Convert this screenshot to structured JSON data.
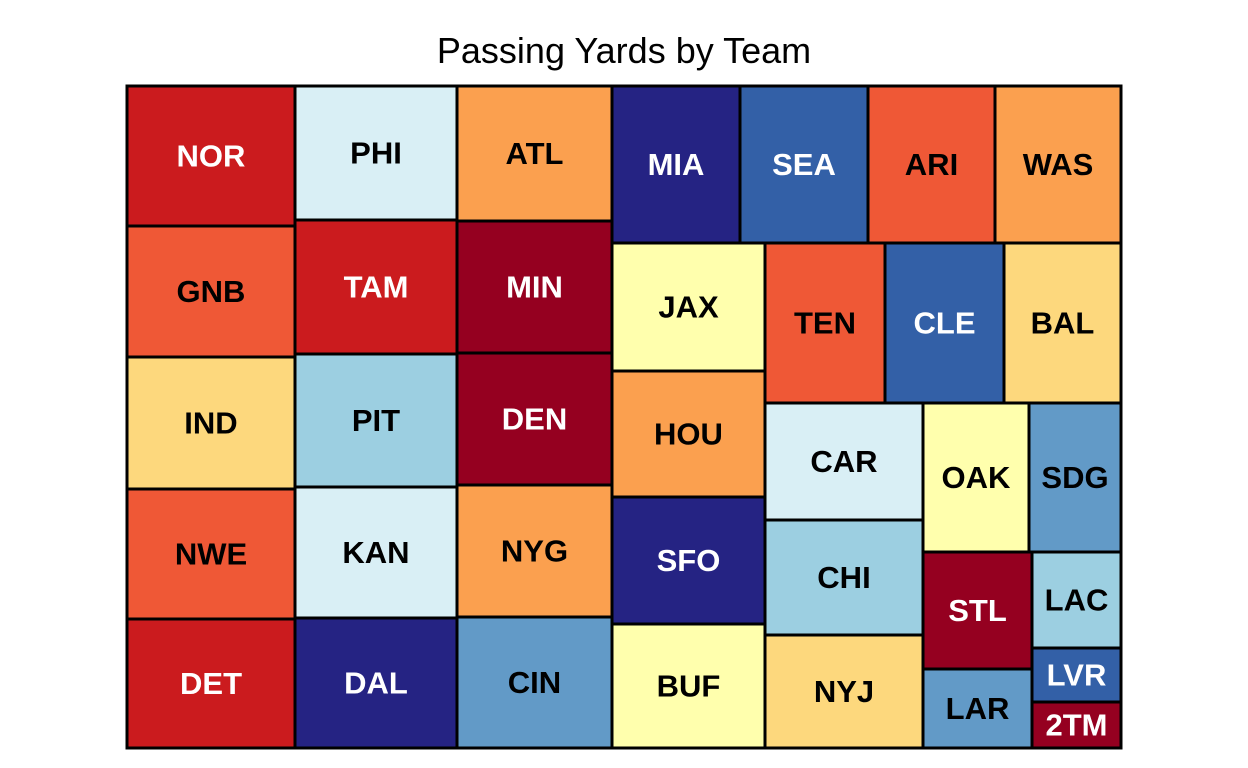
{
  "chart_data": {
    "type": "treemap",
    "title": "Passing Yards by Team",
    "tiles": [
      {
        "label": "NOR",
        "color": "#cb1b1e",
        "text_color": "#ffffff"
      },
      {
        "label": "GNB",
        "color": "#ef5836",
        "text_color": "#000000"
      },
      {
        "label": "IND",
        "color": "#fdd87d",
        "text_color": "#000000"
      },
      {
        "label": "NWE",
        "color": "#ef5836",
        "text_color": "#000000"
      },
      {
        "label": "DET",
        "color": "#cb1b1e",
        "text_color": "#ffffff"
      },
      {
        "label": "PHI",
        "color": "#d9eff5",
        "text_color": "#000000"
      },
      {
        "label": "TAM",
        "color": "#cb1b1e",
        "text_color": "#ffffff"
      },
      {
        "label": "PIT",
        "color": "#9ccfe1",
        "text_color": "#000000"
      },
      {
        "label": "KAN",
        "color": "#d9eff5",
        "text_color": "#000000"
      },
      {
        "label": "DAL",
        "color": "#252383",
        "text_color": "#ffffff"
      },
      {
        "label": "ATL",
        "color": "#fba04f",
        "text_color": "#000000"
      },
      {
        "label": "MIN",
        "color": "#950020",
        "text_color": "#ffffff"
      },
      {
        "label": "DEN",
        "color": "#950020",
        "text_color": "#ffffff"
      },
      {
        "label": "NYG",
        "color": "#fba04f",
        "text_color": "#000000"
      },
      {
        "label": "CIN",
        "color": "#629ac7",
        "text_color": "#000000"
      },
      {
        "label": "MIA",
        "color": "#252383",
        "text_color": "#ffffff"
      },
      {
        "label": "SEA",
        "color": "#3360a7",
        "text_color": "#ffffff"
      },
      {
        "label": "ARI",
        "color": "#ef5836",
        "text_color": "#000000"
      },
      {
        "label": "WAS",
        "color": "#fba04f",
        "text_color": "#000000"
      },
      {
        "label": "JAX",
        "color": "#ffffad",
        "text_color": "#000000"
      },
      {
        "label": "HOU",
        "color": "#fba04f",
        "text_color": "#000000"
      },
      {
        "label": "SFO",
        "color": "#252383",
        "text_color": "#ffffff"
      },
      {
        "label": "BUF",
        "color": "#ffffad",
        "text_color": "#000000"
      },
      {
        "label": "TEN",
        "color": "#ef5836",
        "text_color": "#000000"
      },
      {
        "label": "CLE",
        "color": "#3360a7",
        "text_color": "#ffffff"
      },
      {
        "label": "BAL",
        "color": "#fdd87d",
        "text_color": "#000000"
      },
      {
        "label": "CAR",
        "color": "#d9eff5",
        "text_color": "#000000"
      },
      {
        "label": "CHI",
        "color": "#9ccfe1",
        "text_color": "#000000"
      },
      {
        "label": "NYJ",
        "color": "#fdd87d",
        "text_color": "#000000"
      },
      {
        "label": "OAK",
        "color": "#ffffad",
        "text_color": "#000000"
      },
      {
        "label": "SDG",
        "color": "#629ac7",
        "text_color": "#000000"
      },
      {
        "label": "STL",
        "color": "#950020",
        "text_color": "#ffffff"
      },
      {
        "label": "LAC",
        "color": "#9ccfe1",
        "text_color": "#000000"
      },
      {
        "label": "LAR",
        "color": "#629ac7",
        "text_color": "#000000"
      },
      {
        "label": "LVR",
        "color": "#3360a7",
        "text_color": "#ffffff"
      },
      {
        "label": "2TM",
        "color": "#950020",
        "text_color": "#ffffff"
      }
    ]
  }
}
